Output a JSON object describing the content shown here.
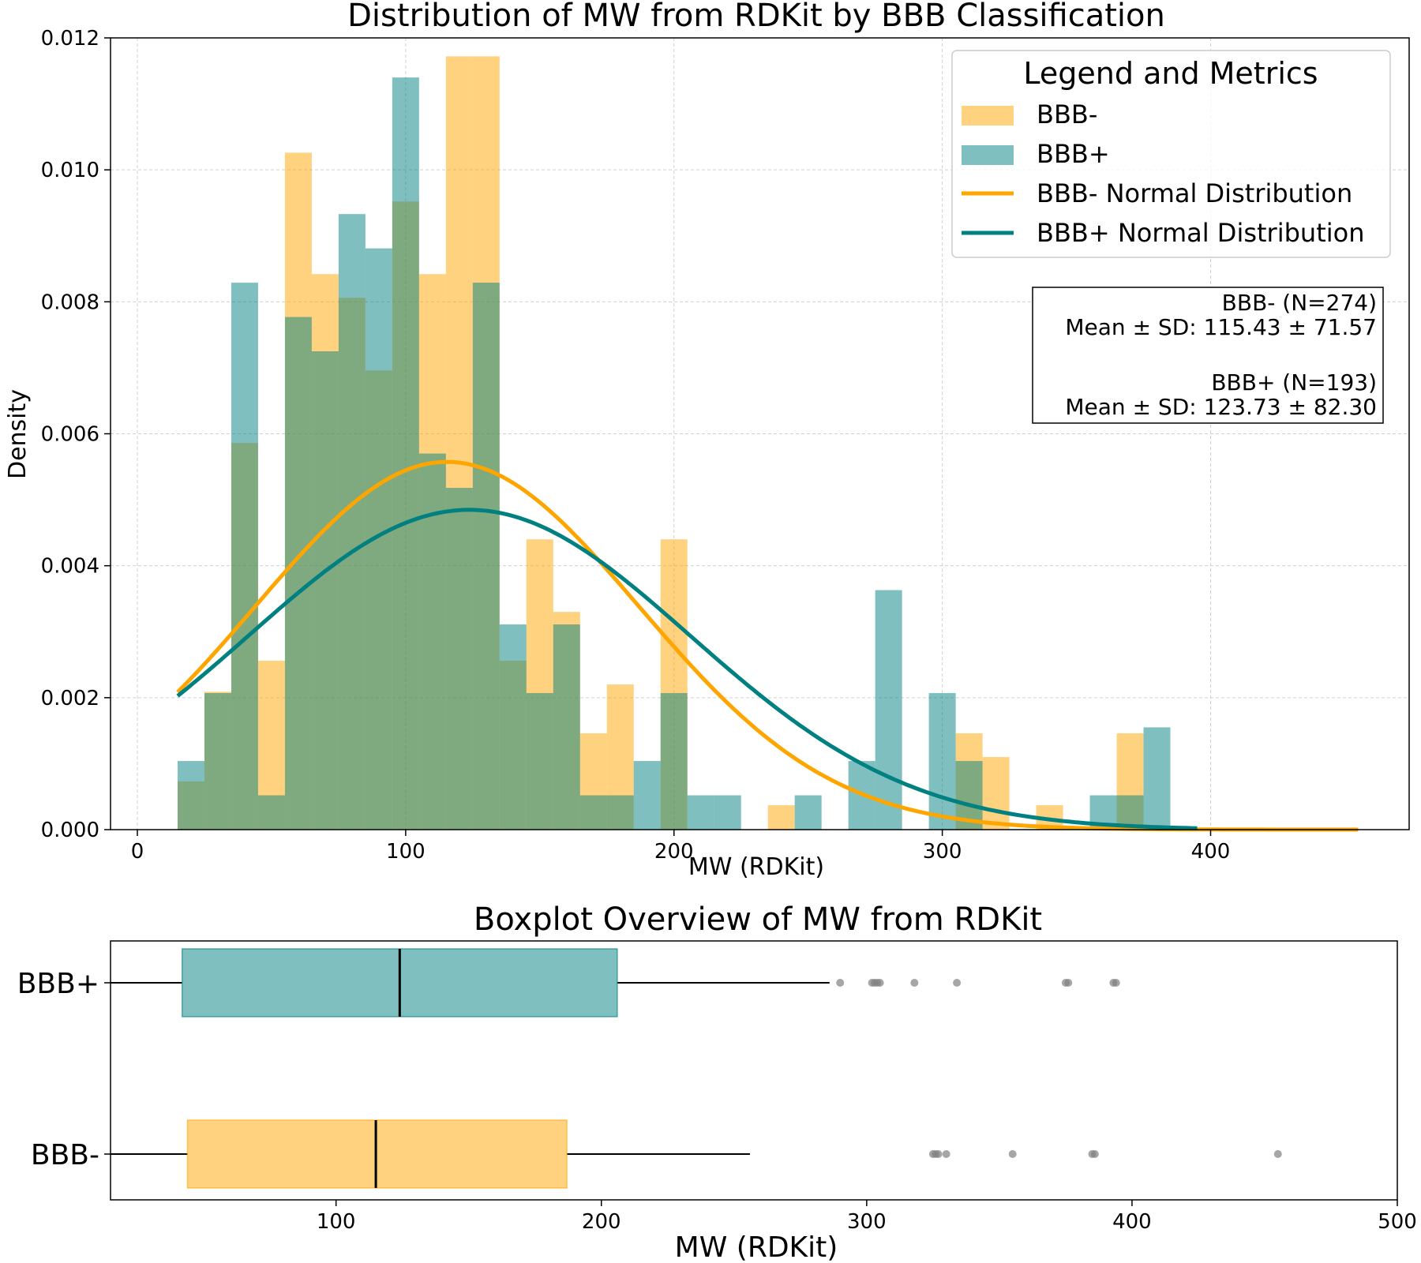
{
  "chart_data": [
    {
      "type": "bar",
      "subtype": "histogram-overlay",
      "title": "Distribution of MW from RDKit by BBB Classification",
      "xlabel": "MW (RDKit)",
      "ylabel": "Density",
      "xlim": [
        -10,
        474
      ],
      "ylim": [
        0,
        0.012
      ],
      "x_ticks": [
        0,
        100,
        200,
        300,
        400
      ],
      "y_ticks": [
        0.0,
        0.002,
        0.004,
        0.006,
        0.008,
        0.01,
        0.012
      ],
      "x_tick_labels": [
        "0",
        "100",
        "200",
        "300",
        "400"
      ],
      "y_tick_labels": [
        "0.000",
        "0.002",
        "0.004",
        "0.006",
        "0.008",
        "0.010",
        "0.012"
      ],
      "grid": true,
      "legend_title": "Legend and Metrics",
      "legend_position": "top-right",
      "legend": [
        "BBB-",
        "BBB+",
        "BBB- Normal Distribution",
        "BBB+ Normal Distribution"
      ],
      "bin_edges": [
        15,
        25,
        35,
        45,
        55,
        65,
        75,
        85,
        95,
        105,
        115,
        125,
        135,
        145,
        155,
        165,
        175,
        185,
        195,
        205,
        215,
        225,
        235,
        245,
        255,
        265,
        275,
        285,
        295,
        305,
        315,
        325,
        335,
        345,
        355,
        365,
        375,
        385,
        395
      ],
      "series": [
        {
          "name": "BBB-",
          "color": "#ffa500",
          "opacity": 0.5,
          "values": [
            0.00073,
            0.00209,
            0.00586,
            0.00256,
            0.01026,
            0.00842,
            0.00806,
            0.00696,
            0.00952,
            0.00842,
            0.01172,
            0.01172,
            0.00256,
            0.0044,
            0.0033,
            0.00146,
            0.0022,
            0,
            0.0044,
            0,
            0,
            0,
            0.00037,
            0,
            0,
            0,
            0,
            0,
            0,
            0.00146,
            0.0011,
            0,
            0.00037,
            0,
            0,
            0.00146,
            0,
            0
          ]
        },
        {
          "name": "BBB+",
          "color": "#008080",
          "opacity": 0.5,
          "values": [
            0.00104,
            0.00207,
            0.00829,
            0.00052,
            0.00777,
            0.00725,
            0.00933,
            0.00881,
            0.0114,
            0.0057,
            0.00518,
            0.00829,
            0.00311,
            0.00207,
            0.00311,
            0.00052,
            0.00052,
            0.00104,
            0.00207,
            0.00052,
            0.00052,
            0,
            0,
            0.00052,
            0,
            0.00104,
            0.00363,
            0,
            0.00207,
            0.00104,
            0,
            0,
            0,
            0,
            0.00052,
            0.00052,
            0.00155,
            0
          ]
        }
      ],
      "normal_curves": [
        {
          "name": "BBB- Normal Distribution",
          "color": "#ffa500",
          "mean": 115.43,
          "sd": 71.57,
          "x_range": [
            15,
            455
          ]
        },
        {
          "name": "BBB+ Normal Distribution",
          "color": "#008080",
          "mean": 123.73,
          "sd": 82.3,
          "x_range": [
            15,
            395
          ]
        }
      ],
      "metrics_box": {
        "line1": "BBB- (N=274)",
        "line2": "Mean ± SD: 115.43 ± 71.57",
        "line3": "BBB+ (N=193)",
        "line4": "Mean ± SD: 123.73 ± 82.30"
      }
    },
    {
      "type": "boxplot",
      "title": "Boxplot Overview of MW from RDKit",
      "xlabel": "MW (RDKit)",
      "xlim": [
        15,
        500
      ],
      "x_ticks": [
        100,
        200,
        300,
        400,
        500
      ],
      "x_tick_labels": [
        "100",
        "200",
        "300",
        "400",
        "500"
      ],
      "categories": [
        "BBB+",
        "BBB-"
      ],
      "boxes": [
        {
          "name": "BBB+",
          "color": "#008080",
          "q1": 42,
          "median": 124,
          "q3": 206,
          "whisker_low": 15,
          "whisker_high": 286,
          "outliers": [
            290,
            302,
            303,
            304,
            305,
            318,
            334,
            375,
            376,
            393,
            394
          ]
        },
        {
          "name": "BBB-",
          "color": "#ffa500",
          "q1": 44,
          "median": 115,
          "q3": 187,
          "whisker_low": 15,
          "whisker_high": 256,
          "outliers": [
            325,
            326,
            327,
            330,
            355,
            385,
            386,
            455
          ]
        }
      ]
    }
  ]
}
